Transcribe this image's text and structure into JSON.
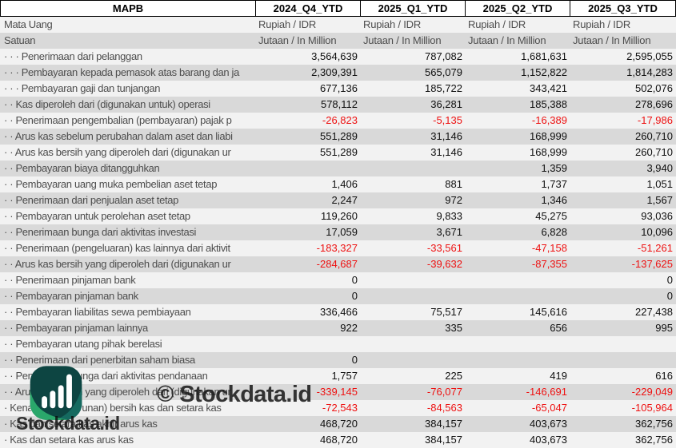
{
  "header": {
    "columns": [
      "MAPB",
      "2024_Q4_YTD",
      "2025_Q1_YTD",
      "2025_Q2_YTD",
      "2025_Q3_YTD"
    ]
  },
  "table": {
    "rows": [
      {
        "dots": "",
        "label": "Mata Uang",
        "type": "meta",
        "values": [
          "Rupiah / IDR",
          "Rupiah / IDR",
          "Rupiah / IDR",
          "Rupiah / IDR"
        ]
      },
      {
        "dots": "",
        "label": "Satuan",
        "type": "meta",
        "values": [
          "Jutaan / In Million",
          "Jutaan / In Million",
          "Jutaan / In Million",
          "Jutaan / In Million"
        ]
      },
      {
        "dots": "· · ·",
        "label": "Penerimaan dari pelanggan",
        "values": [
          "3,564,639",
          "787,082",
          "1,681,631",
          "2,595,055"
        ]
      },
      {
        "dots": "· · ·",
        "label": "Pembayaran kepada pemasok atas barang dan ja",
        "values": [
          "2,309,391",
          "565,079",
          "1,152,822",
          "1,814,283"
        ]
      },
      {
        "dots": "· · ·",
        "label": "Pembayaran gaji dan tunjangan",
        "values": [
          "677,136",
          "185,722",
          "343,421",
          "502,076"
        ]
      },
      {
        "dots": "· ·",
        "label": "Kas diperoleh dari (digunakan untuk) operasi",
        "values": [
          "578,112",
          "36,281",
          "185,388",
          "278,696"
        ]
      },
      {
        "dots": "· ·",
        "label": "Penerimaan pengembalian (pembayaran) pajak p",
        "values": [
          "-26,823",
          "-5,135",
          "-16,389",
          "-17,986"
        ]
      },
      {
        "dots": "· ·",
        "label": "Arus kas sebelum perubahan dalam aset dan liabi",
        "values": [
          "551,289",
          "31,146",
          "168,999",
          "260,710"
        ]
      },
      {
        "dots": "· ·",
        "label": "Arus kas bersih yang diperoleh dari (digunakan ur",
        "values": [
          "551,289",
          "31,146",
          "168,999",
          "260,710"
        ]
      },
      {
        "dots": "· ·",
        "label": "Pembayaran biaya ditangguhkan",
        "values": [
          "",
          "",
          "1,359",
          "3,940"
        ]
      },
      {
        "dots": "· ·",
        "label": "Pembayaran uang muka pembelian aset tetap",
        "values": [
          "1,406",
          "881",
          "1,737",
          "1,051"
        ]
      },
      {
        "dots": "· ·",
        "label": "Penerimaan dari penjualan aset tetap",
        "values": [
          "2,247",
          "972",
          "1,346",
          "1,567"
        ]
      },
      {
        "dots": "· ·",
        "label": "Pembayaran untuk perolehan aset tetap",
        "values": [
          "119,260",
          "9,833",
          "45,275",
          "93,036"
        ]
      },
      {
        "dots": "· ·",
        "label": "Penerimaan bunga dari aktivitas investasi",
        "values": [
          "17,059",
          "3,671",
          "6,828",
          "10,096"
        ]
      },
      {
        "dots": "· ·",
        "label": "Penerimaan (pengeluaran) kas lainnya dari aktivit",
        "values": [
          "-183,327",
          "-33,561",
          "-47,158",
          "-51,261"
        ]
      },
      {
        "dots": "· ·",
        "label": "Arus kas bersih yang diperoleh dari (digunakan ur",
        "values": [
          "-284,687",
          "-39,632",
          "-87,355",
          "-137,625"
        ]
      },
      {
        "dots": "· ·",
        "label": "Penerimaan pinjaman bank",
        "values": [
          "0",
          "",
          "",
          "0"
        ]
      },
      {
        "dots": "· ·",
        "label": "Pembayaran pinjaman bank",
        "values": [
          "0",
          "",
          "",
          "0"
        ]
      },
      {
        "dots": "· ·",
        "label": "Pembayaran liabilitas sewa pembiayaan",
        "values": [
          "336,466",
          "75,517",
          "145,616",
          "227,438"
        ]
      },
      {
        "dots": "· ·",
        "label": "Pembayaran pinjaman lainnya",
        "values": [
          "922",
          "335",
          "656",
          "995"
        ]
      },
      {
        "dots": "· ·",
        "label": "Pembayaran utang pihak berelasi",
        "values": [
          "",
          "",
          "",
          ""
        ]
      },
      {
        "dots": "· ·",
        "label": "Penerimaan dari penerbitan saham biasa",
        "values": [
          "0",
          "",
          "",
          ""
        ]
      },
      {
        "dots": "· ·",
        "label": "Penerimaan bunga dari aktivitas pendanaan",
        "values": [
          "1,757",
          "225",
          "419",
          "616"
        ]
      },
      {
        "dots": "· ·",
        "label": "Arus kas bersih yang diperoleh dari (digunakan ur",
        "values": [
          "-339,145",
          "-76,077",
          "-146,691",
          "-229,049"
        ]
      },
      {
        "dots": "·",
        "label": "Kenaikan (penurunan) bersih kas dan setara kas",
        "values": [
          "-72,543",
          "-84,563",
          "-65,047",
          "-105,964"
        ]
      },
      {
        "dots": "·",
        "label": "Kas dan setara kas akhir arus kas",
        "values": [
          "468,720",
          "384,157",
          "403,673",
          "362,756"
        ]
      },
      {
        "dots": "·",
        "label": "Kas dan setara kas arus kas",
        "values": [
          "468,720",
          "384,157",
          "403,673",
          "362,756"
        ]
      }
    ]
  },
  "watermark": {
    "brand": "Stockdata.id",
    "copyright": "© Stockdata.id",
    "logo_icon": "bar-chart-logo"
  },
  "colors": {
    "stripe_light": "#f2f2f2",
    "stripe_dark": "#d9d9d9",
    "negative": "#ee1111",
    "label_text": "#4d4d4d",
    "value_text": "#0f0f0f",
    "logo_dark_teal": "#0d4542",
    "logo_mid_teal": "#156a60",
    "logo_green": "#2aa76b",
    "logo_bars": "#ffffff"
  }
}
